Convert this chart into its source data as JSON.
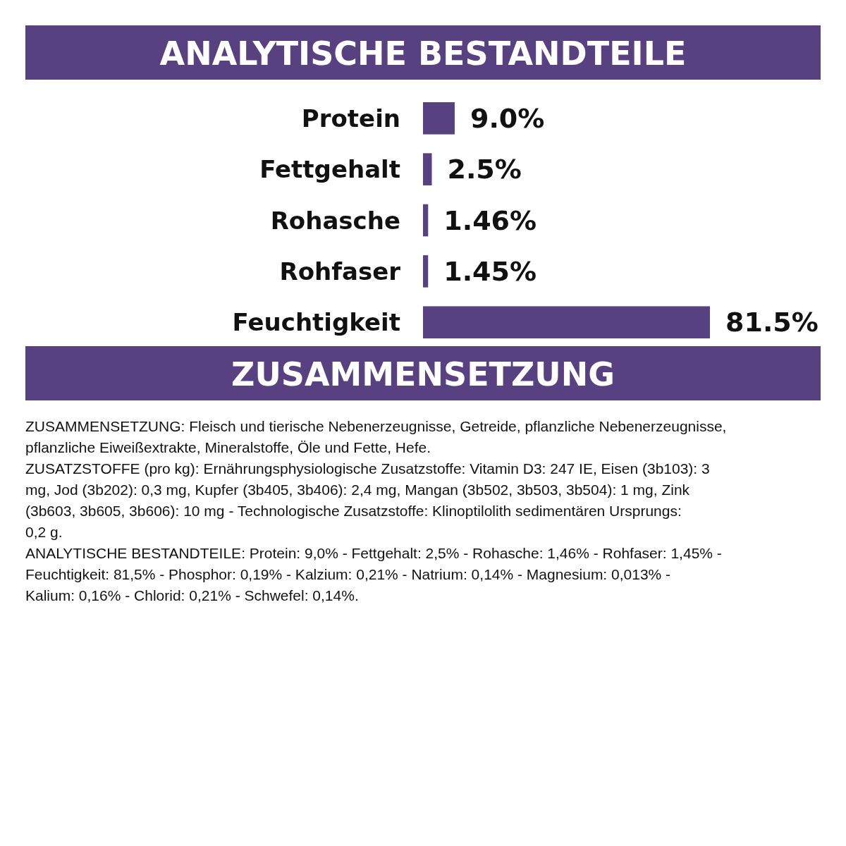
{
  "chart_data": {
    "type": "bar",
    "orientation": "horizontal",
    "title": "ANALYTISCHE BESTANDTEILE",
    "categories": [
      "Protein",
      "Fettgehalt",
      "Rohasche",
      "Rohfaser",
      "Feuchtigkeit"
    ],
    "values": [
      9.0,
      2.5,
      1.46,
      1.45,
      81.5
    ],
    "value_labels": [
      "9.0%",
      "2.5%",
      "1.46%",
      "1.45%",
      "81.5%"
    ],
    "color": "#574180",
    "annotations": [
      "ZUSAMMENSETZUNG",
      "ZUSAMMENSETZUNG: Fleisch und tierische Nebenerzeugnisse, Getreide, pflanzliche Nebenerzeugnisse, pflanzliche Eiweißextrakte, Mineralstoffe, Öle und Fette, Hefe.",
      "ZUSATZSTOFFE (pro kg): Ernährungsphysiologische Zusatzstoffe: Vitamin D3: 247 IE, Eisen (3b103): 3 mg, Jod (3b202): 0,3 mg, Kupfer (3b405, 3b406): 2,4 mg, Mangan (3b502, 3b503, 3b504): 1 mg, Zink (3b603, 3b605, 3b606): 10 mg - Technologische Zusatzstoffe: Klinoptilolith sedimentären Ursprungs: 0,2 g.",
      "ANALYTISCHE BESTANDTEILE: Protein: 9,0% - Fettgehalt: 2,5% - Rohasche: 1,46% - Rohfaser: 1,45% - Feuchtigkeit: 81,5% - Phosphor: 0,19% - Kalzium: 0,21% - Natrium: 0,14% - Magnesium: 0,013% - Kalium: 0,16% - Chlorid: 0,21% - Schwefel: 0,14%."
    ]
  }
}
